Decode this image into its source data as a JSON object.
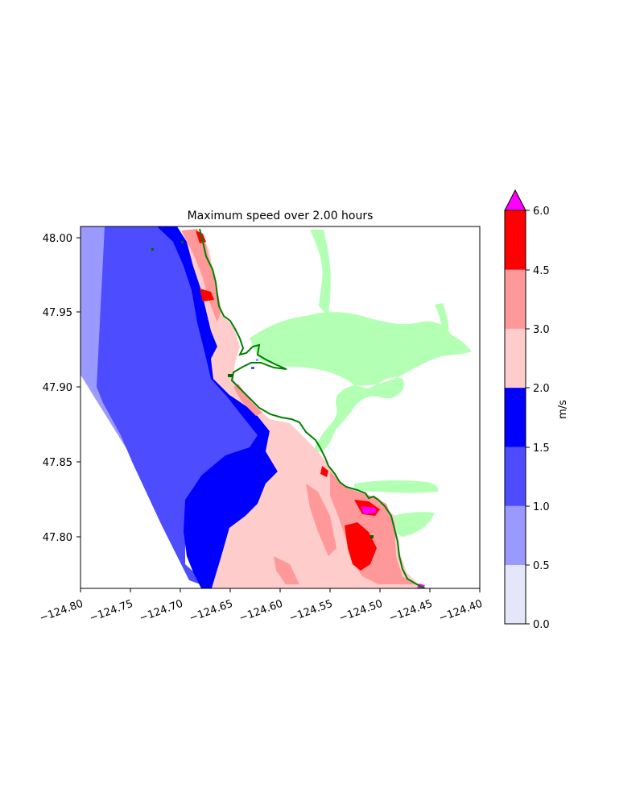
{
  "title": "Maximum speed over 2.00 hours",
  "x_ticks": [
    "−124.80",
    "−124.75",
    "−124.70",
    "−124.65",
    "−124.60",
    "−124.55",
    "−124.50",
    "−124.45",
    "−124.40"
  ],
  "y_ticks": [
    "47.80",
    "47.85",
    "47.90",
    "47.95",
    "48.00"
  ],
  "colorbar": {
    "label": "m/s",
    "tick_labels": [
      "0.0",
      "0.5",
      "1.0",
      "1.5",
      "2.0",
      "3.0",
      "4.5",
      "6.0"
    ],
    "levels": [
      0.0,
      0.5,
      1.0,
      1.5,
      2.0,
      3.0,
      4.5,
      6.0
    ],
    "colors": [
      "#e6e6fa",
      "#9999ff",
      "#4d4dff",
      "#0000ff",
      "#ffcccc",
      "#ff9999",
      "#ff0000"
    ],
    "extend_color": "#ff00ff"
  },
  "chart_data": {
    "type": "heatmap",
    "title": "Maximum speed over 2.00 hours",
    "xlabel": "",
    "ylabel": "",
    "xlim": [
      -124.8,
      -124.4
    ],
    "ylim": [
      47.765,
      48.008
    ],
    "x_ticks": [
      -124.8,
      -124.75,
      -124.7,
      -124.65,
      -124.6,
      -124.55,
      -124.5,
      -124.45,
      -124.4
    ],
    "y_ticks": [
      47.8,
      47.85,
      47.9,
      47.95,
      48.0
    ],
    "colorbar_unit": "m/s",
    "levels": [
      0.0,
      0.5,
      1.0,
      1.5,
      2.0,
      3.0,
      4.5,
      6.0
    ],
    "level_colors": [
      "#e6e6fa",
      "#9999ff",
      "#4d4dff",
      "#0000ff",
      "#ffcccc",
      "#ff9999",
      "#ff0000"
    ],
    "extend_max_color": "#ff00ff",
    "land_color": "#b3ffb3",
    "shoreline_color": "#008000"
  }
}
